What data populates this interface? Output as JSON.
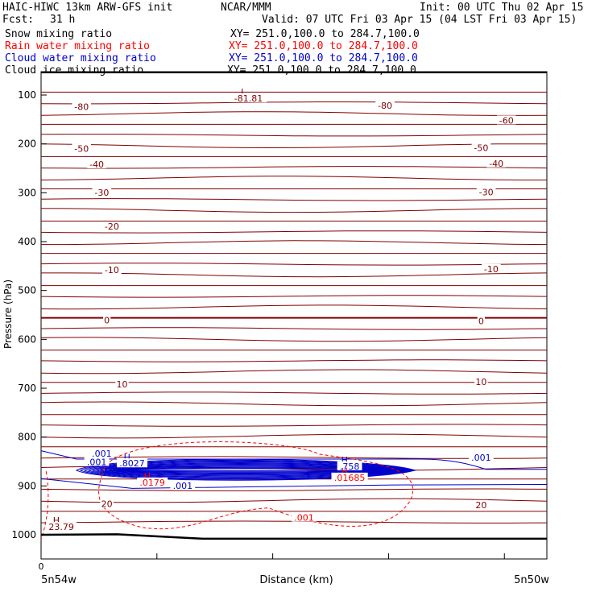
{
  "header": {
    "model": "HAIC-HIWC 13km ARW-GFS init",
    "org": "NCAR/MMM",
    "init": "Init: 00 UTC Thu 02 Apr 15",
    "fcst_label": "Fcst:",
    "fcst_value": "31 h",
    "valid": "Valid: 07 UTC Fri 03 Apr 15 (04 LST Fri 03 Apr 15)"
  },
  "fields": [
    {
      "name": "Snow mixing ratio",
      "xy": "XY= 251.0,100.0 to 284.7,100.0",
      "color": "#000000"
    },
    {
      "name": "Rain water mixing ratio",
      "xy": "XY= 251.0,100.0 to 284.7,100.0",
      "color": "#ff0000"
    },
    {
      "name": "Cloud water mixing ratio",
      "xy": "XY= 251.0,100.0 to 284.7,100.0",
      "color": "#0000cc"
    },
    {
      "name": "Cloud ice mixing ratio",
      "xy": "XY= 251.0,100.0 to 284.7,100.0",
      "color": "#000000"
    }
  ],
  "chart_data": {
    "type": "line",
    "title": "",
    "xlabel": "Distance (km)",
    "ylabel": "Pressure (hPa)",
    "x_tick_labels": [
      "0"
    ],
    "x_end_labels": [
      "5n54w",
      "5n50w"
    ],
    "y_ticks": [
      100,
      200,
      300,
      400,
      500,
      600,
      700,
      800,
      900,
      1000
    ],
    "ylim": [
      1050,
      90
    ],
    "colors": {
      "temperature": "#800000",
      "cloud_water": "#0000cc",
      "rain_water": "#ff0000",
      "axis": "#000000"
    },
    "temperature_contour_labels": [
      {
        "value": "-80",
        "x": 0.08,
        "p": 127
      },
      {
        "value": "-80",
        "x": 0.68,
        "p": 125
      },
      {
        "value": "-60",
        "x": 0.92,
        "p": 155
      },
      {
        "value": "-50",
        "x": 0.08,
        "p": 213
      },
      {
        "value": "-50",
        "x": 0.87,
        "p": 211
      },
      {
        "value": "-40",
        "x": 0.11,
        "p": 245
      },
      {
        "value": "-40",
        "x": 0.9,
        "p": 243
      },
      {
        "value": "-30",
        "x": 0.12,
        "p": 303
      },
      {
        "value": "-30",
        "x": 0.88,
        "p": 302
      },
      {
        "value": "-20",
        "x": 0.14,
        "p": 372
      },
      {
        "value": "-10",
        "x": 0.14,
        "p": 461
      },
      {
        "value": "-10",
        "x": 0.89,
        "p": 459
      },
      {
        "value": "0",
        "x": 0.13,
        "p": 564
      },
      {
        "value": "0",
        "x": 0.87,
        "p": 566
      },
      {
        "value": "10",
        "x": 0.16,
        "p": 695
      },
      {
        "value": "10",
        "x": 0.87,
        "p": 690
      },
      {
        "value": "20",
        "x": 0.13,
        "p": 940
      },
      {
        "value": "20",
        "x": 0.87,
        "p": 942
      }
    ],
    "extrema": [
      {
        "type": "L",
        "value": "-81.81",
        "color": "#800000",
        "x": 0.4,
        "p": 110
      },
      {
        "type": "H",
        "value": "23.79",
        "color": "#800000",
        "x": 0.03,
        "p": 987
      },
      {
        "type": "H",
        "value": ".8027",
        "color": "#0000cc",
        "x": 0.17,
        "p": 857
      },
      {
        "type": "H",
        "value": ".758",
        "color": "#0000cc",
        "x": 0.6,
        "p": 863
      },
      {
        "type": "H",
        "value": ".0179",
        "color": "#ff0000",
        "x": 0.21,
        "p": 896
      },
      {
        "type": "H",
        "value": ".01685",
        "color": "#ff0000",
        "x": 0.6,
        "p": 886
      }
    ],
    "other_labels": [
      {
        "value": ".001",
        "color": "#0000cc",
        "x": 0.12,
        "p": 837
      },
      {
        "value": ".001",
        "color": "#0000cc",
        "x": 0.87,
        "p": 845
      },
      {
        "value": ".001",
        "color": "#0000cc",
        "x": 0.28,
        "p": 903
      },
      {
        "value": ".001",
        "color": "#0000cc",
        "x": 0.11,
        "p": 854
      },
      {
        "value": ".001",
        "color": "#ff0000",
        "x": 0.52,
        "p": 968
      }
    ]
  }
}
